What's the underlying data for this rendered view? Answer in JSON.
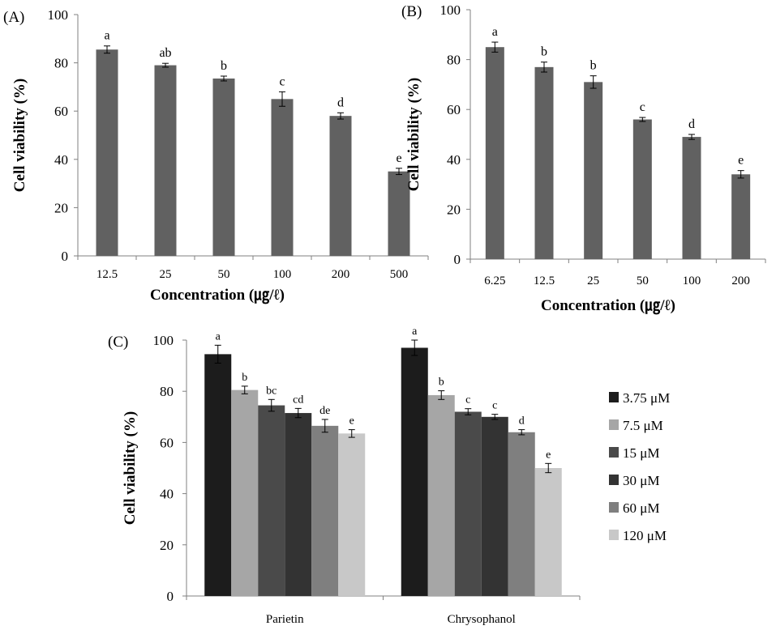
{
  "chart_data": [
    {
      "type": "bar",
      "panel_label": "(A)",
      "categories": [
        "12.5",
        "25",
        "50",
        "100",
        "200",
        "500"
      ],
      "values": [
        85.5,
        79,
        73.5,
        65,
        58,
        35
      ],
      "errors": [
        1.5,
        0.8,
        1,
        3,
        1.3,
        1.3
      ],
      "significance": [
        "a",
        "ab",
        "b",
        "c",
        "d",
        "e"
      ],
      "xlabel": "Concentration (㎍/ℓ)",
      "ylabel": "Cell viability (%)",
      "ylim": [
        0,
        100
      ],
      "yticks": [
        0,
        20,
        40,
        60,
        80,
        100
      ],
      "bar_color": "#616161"
    },
    {
      "type": "bar",
      "panel_label": "(B)",
      "categories": [
        "6.25",
        "12.5",
        "25",
        "50",
        "100",
        "200"
      ],
      "values": [
        85,
        77,
        71,
        56,
        49,
        34
      ],
      "errors": [
        2,
        2,
        2.5,
        0.8,
        1,
        1.5
      ],
      "significance": [
        "a",
        "b",
        "b",
        "c",
        "d",
        "e"
      ],
      "xlabel": "Concentration (㎍/ℓ)",
      "ylabel": "Cell viability (%)",
      "ylim": [
        0,
        100
      ],
      "yticks": [
        0,
        20,
        40,
        60,
        80,
        100
      ],
      "bar_color": "#616161"
    },
    {
      "type": "bar",
      "panel_label": "(C)",
      "categories": [
        "Parietin",
        "Chrysophanol"
      ],
      "series": [
        {
          "name": "3.75 μM",
          "color": "#1c1c1c",
          "values": [
            94.5,
            97
          ],
          "errors": [
            3.5,
            3
          ],
          "significance": [
            "a",
            "a"
          ]
        },
        {
          "name": "7.5 μM",
          "color": "#a6a6a6",
          "values": [
            80.5,
            78.5
          ],
          "errors": [
            1.5,
            1.7
          ],
          "significance": [
            "b",
            "b"
          ]
        },
        {
          "name": "15 μM",
          "color": "#4a4a4a",
          "values": [
            74.5,
            72
          ],
          "errors": [
            2.3,
            1.2
          ],
          "significance": [
            "bc",
            "c"
          ]
        },
        {
          "name": "30 μM",
          "color": "#333333",
          "values": [
            71.5,
            70
          ],
          "errors": [
            1.8,
            1
          ],
          "significance": [
            "cd",
            "c"
          ]
        },
        {
          "name": "60 μM",
          "color": "#7f7f7f",
          "values": [
            66.5,
            64
          ],
          "errors": [
            2.5,
            1
          ],
          "significance": [
            "de",
            "d"
          ]
        },
        {
          "name": "120 μM",
          "color": "#c8c8c8",
          "values": [
            63.5,
            50
          ],
          "errors": [
            1.5,
            1.8
          ],
          "significance": [
            "e",
            "e"
          ]
        }
      ],
      "ylabel": "Cell viability (%)",
      "ylim": [
        0,
        100
      ],
      "yticks": [
        0,
        20,
        40,
        60,
        80,
        100
      ],
      "legend_position": "right"
    }
  ]
}
